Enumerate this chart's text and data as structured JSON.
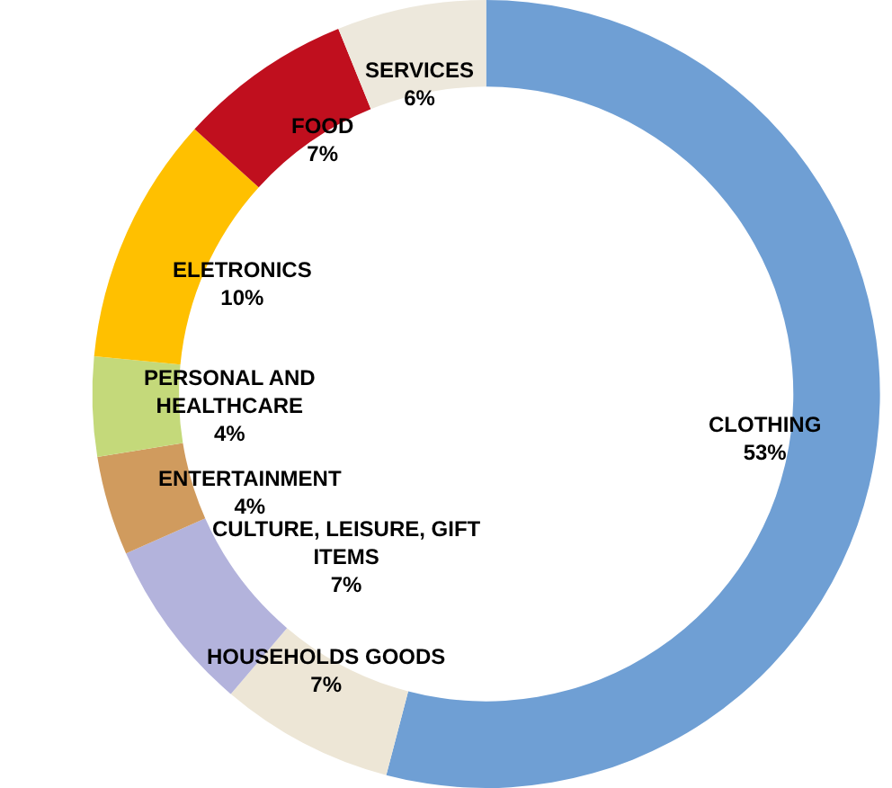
{
  "chart_data": {
    "type": "donut",
    "categories": [
      "CLOTHING",
      "HOUSEHOLDS GOODS",
      "CULTURE, LEISURE, GIFT ITEMS",
      "ENTERTAINMENT",
      "PERSONAL AND HEALTHCARE",
      "ELETRONICS",
      "FOOD",
      "SERVICES"
    ],
    "values": [
      53,
      7,
      7,
      4,
      4,
      10,
      7,
      6
    ],
    "value_labels": [
      "53%",
      "7%",
      "7%",
      "4%",
      "4%",
      "10%",
      "7%",
      "6%"
    ],
    "colors": [
      "#6f9fd4",
      "#ede6d6",
      "#b3b3dc",
      "#d09b5e",
      "#c4d97a",
      "#ffc000",
      "#c00f1e",
      "#ede8dc"
    ],
    "legend": false
  }
}
